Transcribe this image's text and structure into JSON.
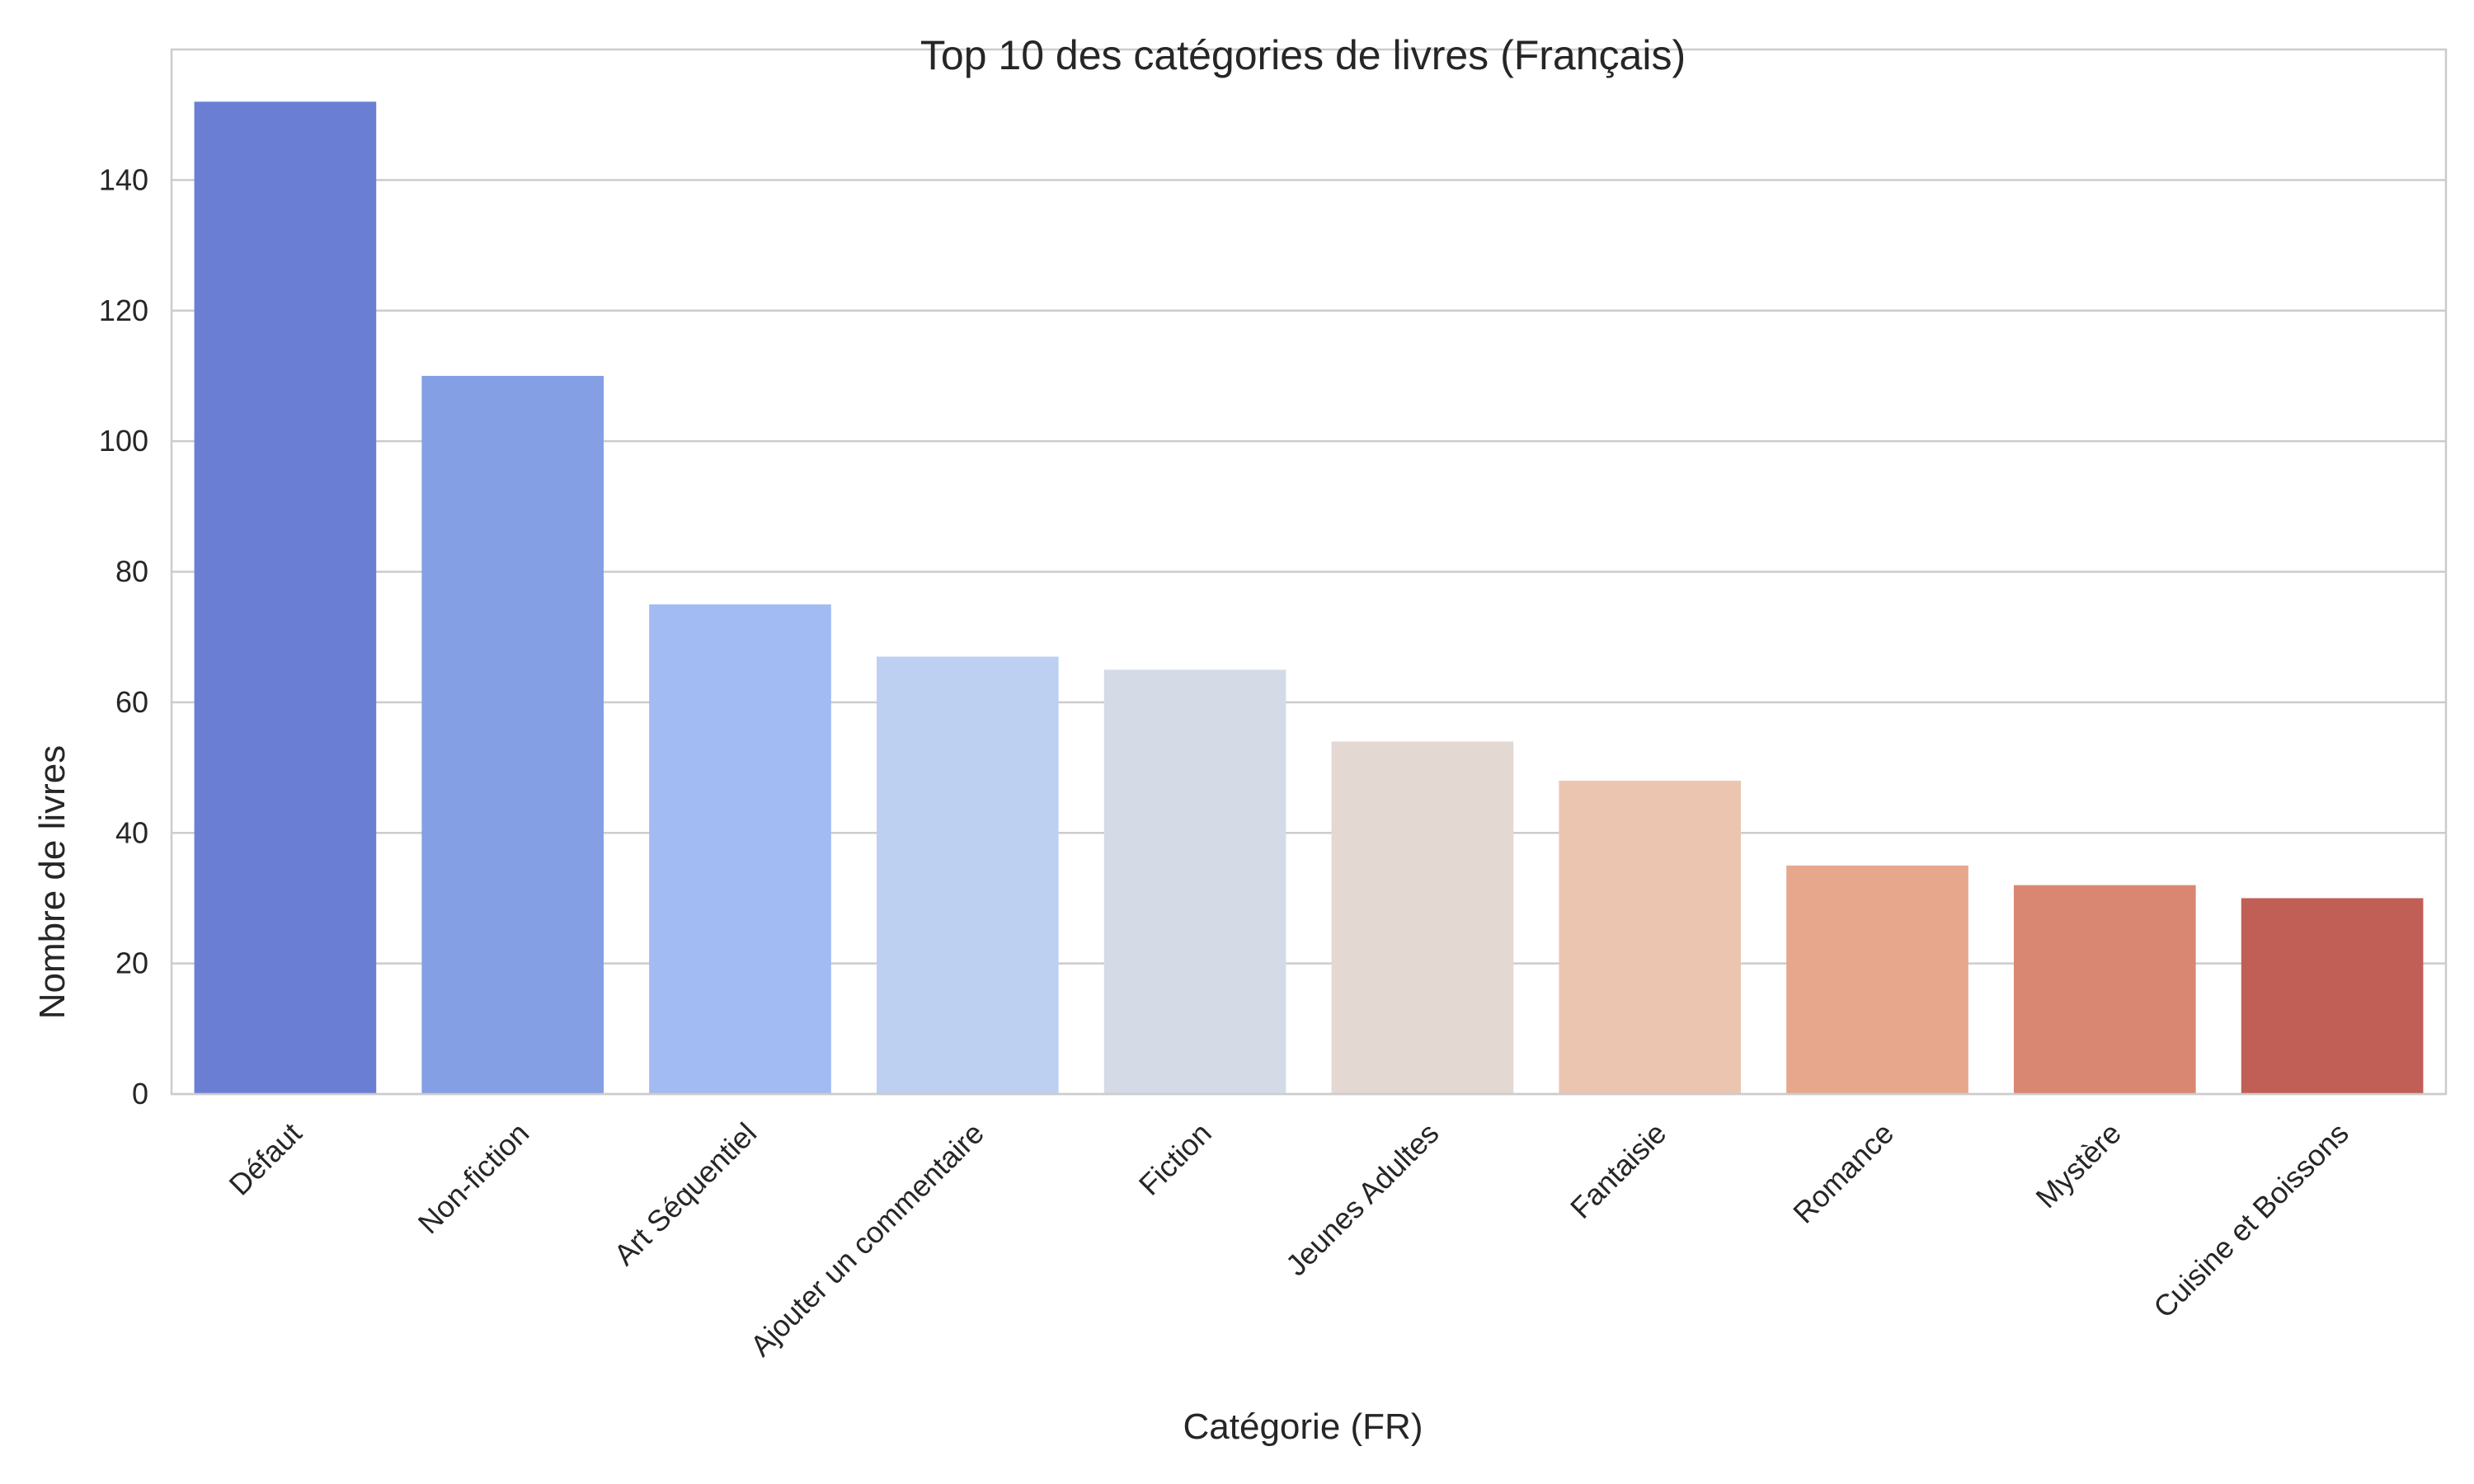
{
  "chart_data": {
    "type": "bar",
    "title": "Top 10 des catégories de livres (Français)",
    "xlabel": "Catégorie (FR)",
    "ylabel": "Nombre de livres",
    "ylim": [
      0,
      160
    ],
    "yticks": [
      0,
      20,
      40,
      60,
      80,
      100,
      120,
      140
    ],
    "grid": true,
    "categories": [
      "Défaut",
      "Non-fiction",
      "Art Séquentiel",
      "Ajouter un commentaire",
      "Fiction",
      "Jeunes Adultes",
      "Fantaisie",
      "Romance",
      "Mystère",
      "Cuisine et Boissons"
    ],
    "values": [
      152,
      110,
      75,
      67,
      65,
      54,
      48,
      35,
      32,
      30
    ],
    "colors": [
      "#6a7fd4",
      "#859fe5",
      "#a2bbf2",
      "#bed0f1",
      "#d5dbe6",
      "#e3d8d2",
      "#ecc5b1",
      "#e6a78d",
      "#d98772",
      "#c15e55"
    ]
  }
}
